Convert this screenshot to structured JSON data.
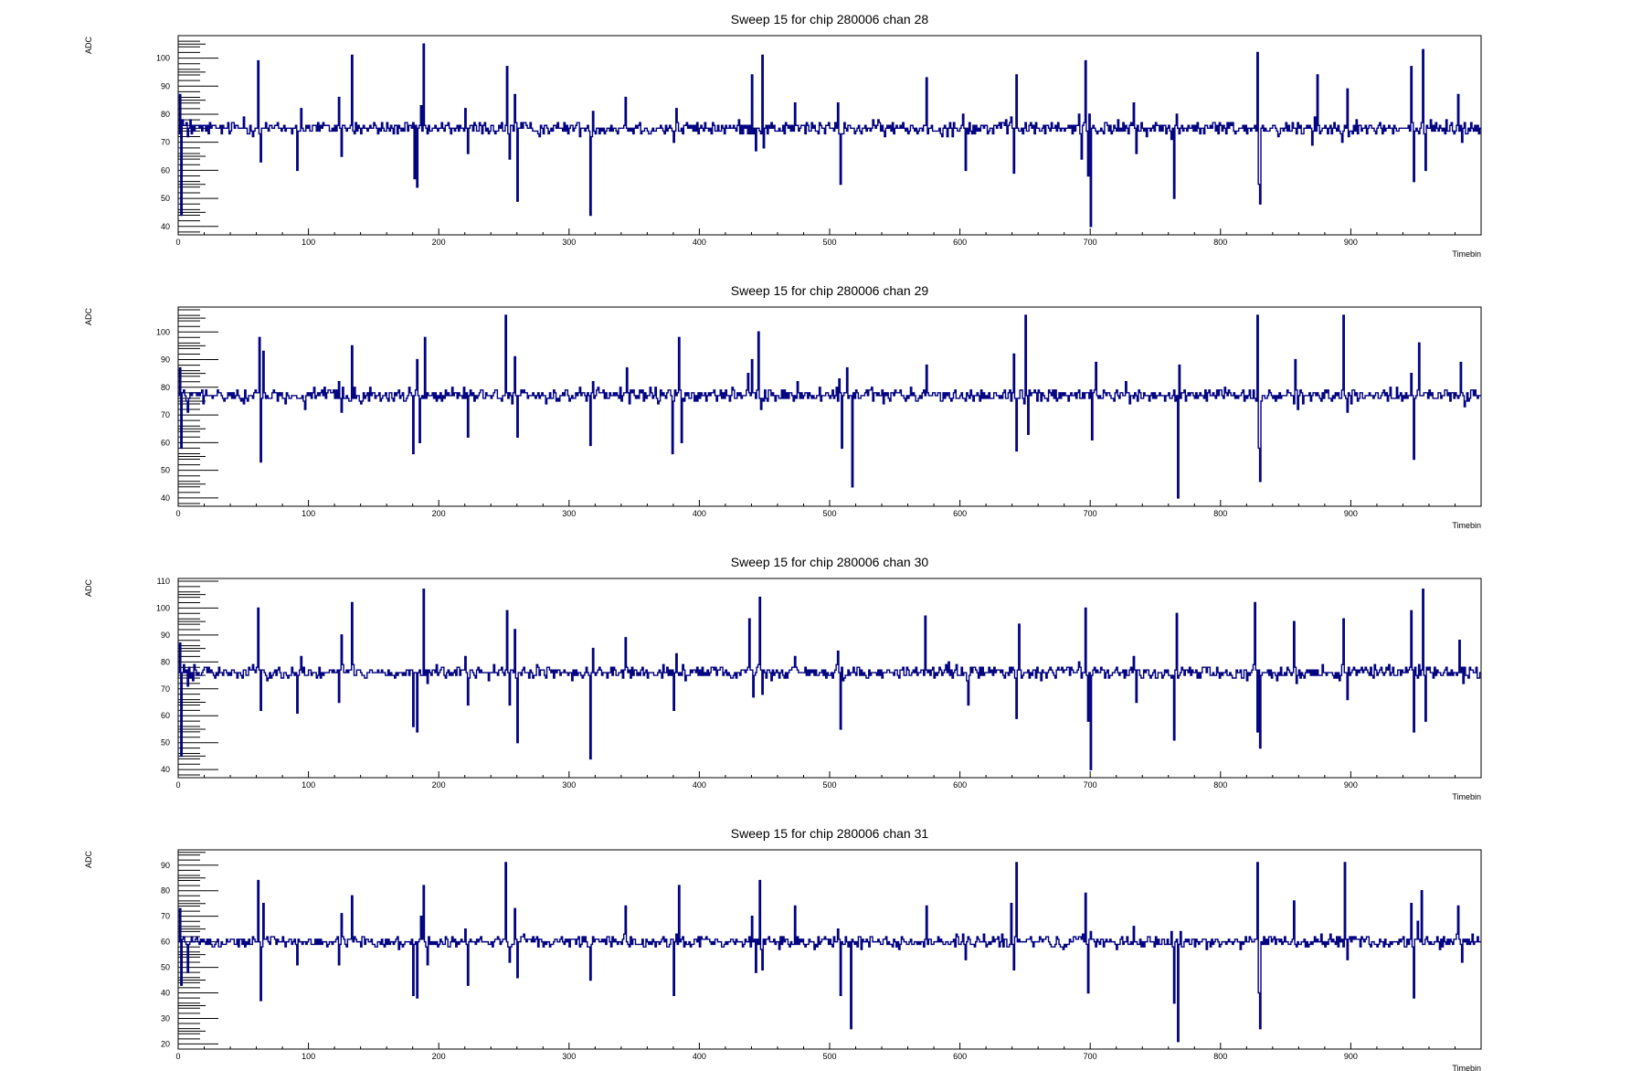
{
  "chart_data": [
    {
      "type": "line",
      "title": "Sweep 15 for chip 280006 chan 28",
      "xlabel": "Timebin",
      "ylabel": "ADC",
      "xlim": [
        0,
        1000
      ],
      "ylim": [
        37,
        108
      ],
      "xticks": [
        0,
        100,
        200,
        300,
        400,
        500,
        600,
        700,
        800,
        900
      ],
      "yticks": [
        40,
        50,
        60,
        70,
        80,
        90,
        100
      ],
      "baseline": 75,
      "noise": 1.5,
      "series": [
        {
          "color": "#000080",
          "spikes": [
            [
              1,
              87
            ],
            [
              2,
              44
            ],
            [
              3,
              78
            ],
            [
              7,
              72
            ],
            [
              9,
              78
            ],
            [
              50,
              79
            ],
            [
              61,
              99
            ],
            [
              63,
              63
            ],
            [
              91,
              60
            ],
            [
              94,
              82
            ],
            [
              123,
              86
            ],
            [
              125,
              65
            ],
            [
              133,
              101
            ],
            [
              181,
              57
            ],
            [
              183,
              54
            ],
            [
              186,
              83
            ],
            [
              188,
              105
            ],
            [
              191,
              73
            ],
            [
              220,
              82
            ],
            [
              222,
              66
            ],
            [
              252,
              97
            ],
            [
              254,
              64
            ],
            [
              258,
              87
            ],
            [
              260,
              49
            ],
            [
              316,
              44
            ],
            [
              318,
              81
            ],
            [
              343,
              86
            ],
            [
              380,
              70
            ],
            [
              382,
              82
            ],
            [
              440,
              94
            ],
            [
              443,
              67
            ],
            [
              448,
              101
            ],
            [
              449,
              68
            ],
            [
              473,
              84
            ],
            [
              506,
              84
            ],
            [
              508,
              55
            ],
            [
              574,
              93
            ],
            [
              602,
              80
            ],
            [
              604,
              60
            ],
            [
              639,
              79
            ],
            [
              641,
              59
            ],
            [
              643,
              94
            ],
            [
              691,
              80
            ],
            [
              693,
              64
            ],
            [
              696,
              99
            ],
            [
              698,
              58
            ],
            [
              699,
              80
            ],
            [
              700,
              40
            ],
            [
              733,
              84
            ],
            [
              735,
              66
            ],
            [
              762,
              71
            ],
            [
              764,
              50
            ],
            [
              766,
              80
            ],
            [
              828,
              102
            ],
            [
              829,
              55
            ],
            [
              830,
              48
            ],
            [
              870,
              69
            ],
            [
              872,
              79
            ],
            [
              874,
              94
            ],
            [
              893,
              70
            ],
            [
              895,
              76
            ],
            [
              897,
              89
            ],
            [
              912,
              73
            ],
            [
              946,
              97
            ],
            [
              948,
              56
            ],
            [
              952,
              73
            ],
            [
              955,
              103
            ],
            [
              957,
              60
            ],
            [
              961,
              78
            ],
            [
              982,
              87
            ],
            [
              985,
              70
            ]
          ]
        }
      ]
    },
    {
      "type": "line",
      "title": "Sweep 15 for chip 280006 chan 29",
      "xlabel": "Timebin",
      "ylabel": "ADC",
      "xlim": [
        0,
        1000
      ],
      "ylim": [
        37,
        109
      ],
      "xticks": [
        0,
        100,
        200,
        300,
        400,
        500,
        600,
        700,
        800,
        900
      ],
      "yticks": [
        40,
        50,
        60,
        70,
        80,
        90,
        100
      ],
      "baseline": 77,
      "noise": 1.5,
      "series": [
        {
          "color": "#000080",
          "spikes": [
            [
              1,
              87
            ],
            [
              2,
              58
            ],
            [
              4,
              79
            ],
            [
              7,
              71
            ],
            [
              62,
              98
            ],
            [
              63,
              53
            ],
            [
              65,
              93
            ],
            [
              97,
              72
            ],
            [
              123,
              82
            ],
            [
              125,
              71
            ],
            [
              133,
              95
            ],
            [
              135,
              80
            ],
            [
              180,
              56
            ],
            [
              183,
              90
            ],
            [
              185,
              60
            ],
            [
              189,
              98
            ],
            [
              219,
              80
            ],
            [
              222,
              62
            ],
            [
              251,
              106
            ],
            [
              254,
              78
            ],
            [
              258,
              91
            ],
            [
              260,
              62
            ],
            [
              316,
              59
            ],
            [
              318,
              82
            ],
            [
              344,
              87
            ],
            [
              346,
              74
            ],
            [
              379,
              56
            ],
            [
              381,
              79
            ],
            [
              384,
              98
            ],
            [
              386,
              60
            ],
            [
              437,
              85
            ],
            [
              440,
              90
            ],
            [
              445,
              100
            ],
            [
              447,
              72
            ],
            [
              475,
              82
            ],
            [
              507,
              83
            ],
            [
              509,
              58
            ],
            [
              513,
              87
            ],
            [
              517,
              44
            ],
            [
              574,
              88
            ],
            [
              641,
              92
            ],
            [
              643,
              57
            ],
            [
              650,
              106
            ],
            [
              652,
              63
            ],
            [
              699,
              76
            ],
            [
              701,
              61
            ],
            [
              704,
              89
            ],
            [
              727,
              82
            ],
            [
              765,
              75
            ],
            [
              767,
              40
            ],
            [
              768,
              88
            ],
            [
              828,
              106
            ],
            [
              829,
              58
            ],
            [
              830,
              46
            ],
            [
              857,
              90
            ],
            [
              859,
              72
            ],
            [
              894,
              106
            ],
            [
              897,
              71
            ],
            [
              946,
              85
            ],
            [
              948,
              54
            ],
            [
              952,
              96
            ],
            [
              984,
              89
            ],
            [
              987,
              73
            ]
          ]
        }
      ]
    },
    {
      "type": "line",
      "title": "Sweep 15 for chip 280006 chan 30",
      "xlabel": "Timebin",
      "ylabel": "ADC",
      "xlim": [
        0,
        1000
      ],
      "ylim": [
        37,
        111
      ],
      "xticks": [
        0,
        100,
        200,
        300,
        400,
        500,
        600,
        700,
        800,
        900
      ],
      "yticks": [
        40,
        50,
        60,
        70,
        80,
        90,
        100,
        110
      ],
      "baseline": 76,
      "noise": 1.5,
      "series": [
        {
          "color": "#000080",
          "spikes": [
            [
              1,
              87
            ],
            [
              2,
              45
            ],
            [
              4,
              79
            ],
            [
              7,
              71
            ],
            [
              61,
              100
            ],
            [
              63,
              62
            ],
            [
              91,
              61
            ],
            [
              94,
              82
            ],
            [
              123,
              65
            ],
            [
              125,
              90
            ],
            [
              133,
              102
            ],
            [
              180,
              56
            ],
            [
              183,
              54
            ],
            [
              188,
              107
            ],
            [
              191,
              72
            ],
            [
              220,
              82
            ],
            [
              222,
              64
            ],
            [
              252,
              99
            ],
            [
              254,
              64
            ],
            [
              258,
              92
            ],
            [
              260,
              50
            ],
            [
              316,
              44
            ],
            [
              318,
              85
            ],
            [
              343,
              89
            ],
            [
              380,
              62
            ],
            [
              382,
              83
            ],
            [
              438,
              96
            ],
            [
              441,
              67
            ],
            [
              446,
              104
            ],
            [
              448,
              68
            ],
            [
              473,
              82
            ],
            [
              506,
              84
            ],
            [
              508,
              55
            ],
            [
              573,
              97
            ],
            [
              606,
              64
            ],
            [
              640,
              78
            ],
            [
              643,
              59
            ],
            [
              645,
              94
            ],
            [
              691,
              80
            ],
            [
              696,
              100
            ],
            [
              698,
              58
            ],
            [
              700,
              40
            ],
            [
              733,
              82
            ],
            [
              735,
              65
            ],
            [
              762,
              74
            ],
            [
              764,
              51
            ],
            [
              766,
              98
            ],
            [
              826,
              102
            ],
            [
              828,
              54
            ],
            [
              830,
              48
            ],
            [
              856,
              95
            ],
            [
              858,
              72
            ],
            [
              894,
              96
            ],
            [
              897,
              66
            ],
            [
              946,
              99
            ],
            [
              948,
              54
            ],
            [
              952,
              79
            ],
            [
              955,
              107
            ],
            [
              957,
              58
            ],
            [
              983,
              88
            ],
            [
              986,
              72
            ]
          ]
        }
      ]
    },
    {
      "type": "line",
      "title": "Sweep 15 for chip 280006 chan 31",
      "xlabel": "Timebin",
      "ylabel": "ADC",
      "xlim": [
        0,
        1000
      ],
      "ylim": [
        18,
        96
      ],
      "xticks": [
        0,
        100,
        200,
        300,
        400,
        500,
        600,
        700,
        800,
        900
      ],
      "yticks": [
        20,
        30,
        40,
        50,
        60,
        70,
        80,
        90
      ],
      "baseline": 60,
      "noise": 1.5,
      "series": [
        {
          "color": "#000080",
          "spikes": [
            [
              1,
              73
            ],
            [
              2,
              43
            ],
            [
              4,
              62
            ],
            [
              7,
              48
            ],
            [
              61,
              84
            ],
            [
              63,
              37
            ],
            [
              65,
              75
            ],
            [
              91,
              51
            ],
            [
              123,
              51
            ],
            [
              125,
              71
            ],
            [
              133,
              78
            ],
            [
              180,
              39
            ],
            [
              183,
              38
            ],
            [
              186,
              70
            ],
            [
              188,
              82
            ],
            [
              191,
              51
            ],
            [
              220,
              65
            ],
            [
              222,
              43
            ],
            [
              251,
              91
            ],
            [
              254,
              52
            ],
            [
              258,
              73
            ],
            [
              260,
              46
            ],
            [
              316,
              45
            ],
            [
              318,
              62
            ],
            [
              343,
              74
            ],
            [
              380,
              39
            ],
            [
              382,
              63
            ],
            [
              384,
              82
            ],
            [
              440,
              70
            ],
            [
              443,
              48
            ],
            [
              446,
              84
            ],
            [
              448,
              49
            ],
            [
              473,
              74
            ],
            [
              506,
              65
            ],
            [
              508,
              39
            ],
            [
              516,
              26
            ],
            [
              574,
              74
            ],
            [
              602,
              63
            ],
            [
              604,
              53
            ],
            [
              639,
              75
            ],
            [
              641,
              49
            ],
            [
              643,
              91
            ],
            [
              691,
              62
            ],
            [
              696,
              79
            ],
            [
              698,
              40
            ],
            [
              700,
              64
            ],
            [
              733,
              66
            ],
            [
              762,
              64
            ],
            [
              764,
              36
            ],
            [
              767,
              21
            ],
            [
              769,
              64
            ],
            [
              828,
              91
            ],
            [
              829,
              40
            ],
            [
              830,
              26
            ],
            [
              856,
              76
            ],
            [
              895,
              91
            ],
            [
              897,
              53
            ],
            [
              946,
              75
            ],
            [
              948,
              38
            ],
            [
              951,
              68
            ],
            [
              954,
              80
            ],
            [
              982,
              74
            ],
            [
              985,
              52
            ]
          ]
        }
      ]
    }
  ]
}
